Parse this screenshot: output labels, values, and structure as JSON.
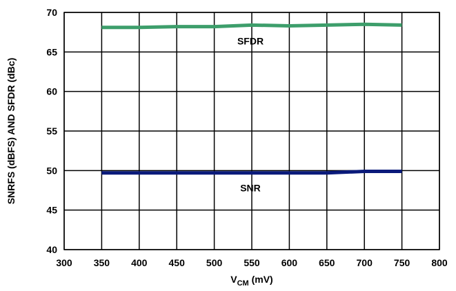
{
  "chart_data": {
    "type": "line",
    "title": "",
    "xlabel": {
      "main": "V",
      "sub": "CM",
      "unit": " (mV)"
    },
    "ylabel": "SNRFS (dBFS) AND SFDR (dBc)",
    "xlim": [
      300,
      800
    ],
    "ylim": [
      40,
      70
    ],
    "x_ticks": [
      300,
      350,
      400,
      450,
      500,
      550,
      600,
      650,
      700,
      750,
      800
    ],
    "y_ticks": [
      40,
      45,
      50,
      55,
      60,
      65,
      70
    ],
    "grid": true,
    "legend": "none",
    "series": [
      {
        "name": "SFDR",
        "color": "#3d9e6b",
        "x": [
          350,
          400,
          450,
          500,
          550,
          600,
          650,
          700,
          750
        ],
        "values": [
          68.1,
          68.1,
          68.2,
          68.2,
          68.4,
          68.3,
          68.4,
          68.5,
          68.4
        ]
      },
      {
        "name": "SNR",
        "color": "#0a1a7a",
        "x": [
          350,
          400,
          450,
          500,
          550,
          600,
          650,
          700,
          750
        ],
        "values": [
          49.7,
          49.7,
          49.7,
          49.7,
          49.7,
          49.7,
          49.7,
          49.9,
          49.9
        ]
      }
    ]
  }
}
